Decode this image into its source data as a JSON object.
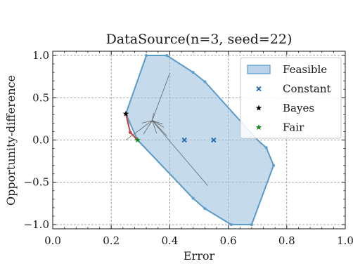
{
  "chart_data": {
    "type": "scatter",
    "title": "DataSource(n=3, seed=22)",
    "xlabel": "Error",
    "ylabel": "Opportunity-difference",
    "xlim": [
      0.0,
      1.0
    ],
    "ylim": [
      -1.05,
      1.05
    ],
    "x_ticks": [
      0.0,
      0.2,
      0.4,
      0.6,
      0.8,
      1.0
    ],
    "x_tick_labels": [
      "0.0",
      "0.2",
      "0.4",
      "0.6",
      "0.8",
      "1.0"
    ],
    "y_ticks": [
      -1.0,
      -0.5,
      0.0,
      0.5,
      1.0
    ],
    "y_tick_labels": [
      "−1.0",
      "−0.5",
      "0.0",
      "0.5",
      "1.0"
    ],
    "grid": true,
    "legend_position": "top-right",
    "legend": [
      {
        "label": "Feasible",
        "kind": "patch",
        "color": "#9ec1de",
        "edge": "#5b9bc8"
      },
      {
        "label": "Constant",
        "kind": "x",
        "color": "#1f64ad"
      },
      {
        "label": "Bayes",
        "kind": "star",
        "color": "#000000"
      },
      {
        "label": "Fair",
        "kind": "star",
        "color": "#138a1b"
      }
    ],
    "feasible_polygon": [
      [
        0.25,
        0.31
      ],
      [
        0.32,
        1.0
      ],
      [
        0.39,
        1.0
      ],
      [
        0.48,
        0.8
      ],
      [
        0.52,
        0.69
      ],
      [
        0.7,
        0.0
      ],
      [
        0.73,
        -0.09
      ],
      [
        0.755,
        -0.3
      ],
      [
        0.68,
        -1.0
      ],
      [
        0.61,
        -1.0
      ],
      [
        0.52,
        -0.81
      ],
      [
        0.48,
        -0.69
      ],
      [
        0.29,
        0.0
      ]
    ],
    "polygon_vertices": [
      [
        0.32,
        1.0
      ],
      [
        0.39,
        1.0
      ],
      [
        0.48,
        0.8
      ],
      [
        0.52,
        0.69
      ],
      [
        0.73,
        -0.09
      ],
      [
        0.755,
        -0.3
      ],
      [
        0.68,
        -1.0
      ],
      [
        0.61,
        -1.0
      ],
      [
        0.52,
        -0.81
      ],
      [
        0.48,
        -0.69
      ]
    ],
    "red_segment": [
      [
        0.25,
        0.31
      ],
      [
        0.265,
        0.09
      ],
      [
        0.29,
        0.0
      ]
    ],
    "red_points": [
      [
        0.265,
        0.09
      ]
    ],
    "constant": [
      [
        0.45,
        0.0
      ],
      [
        0.55,
        0.0
      ]
    ],
    "bayes": [
      [
        0.25,
        0.31
      ]
    ],
    "fair": [
      [
        0.29,
        0.0
      ]
    ],
    "thin_lines": [
      [
        [
          0.34,
          0.23
        ],
        [
          0.53,
          -0.54
        ]
      ],
      [
        [
          0.34,
          0.23
        ],
        [
          0.4,
          0.79
        ]
      ],
      [
        [
          0.34,
          0.23
        ],
        [
          0.31,
          0.07
        ]
      ],
      [
        [
          0.34,
          0.23
        ],
        [
          0.39,
          0.05
        ]
      ],
      [
        [
          0.34,
          0.23
        ],
        [
          0.355,
          0.08
        ]
      ],
      [
        [
          0.34,
          0.23
        ],
        [
          0.305,
          0.2
        ]
      ],
      [
        [
          0.34,
          0.23
        ],
        [
          0.375,
          0.19
        ]
      ],
      [
        [
          0.34,
          0.23
        ],
        [
          0.345,
          0.32
        ]
      ],
      [
        [
          0.34,
          0.23
        ],
        [
          0.38,
          0.15
        ]
      ],
      [
        [
          0.34,
          0.23
        ],
        [
          0.25,
          0.0
        ]
      ]
    ]
  }
}
